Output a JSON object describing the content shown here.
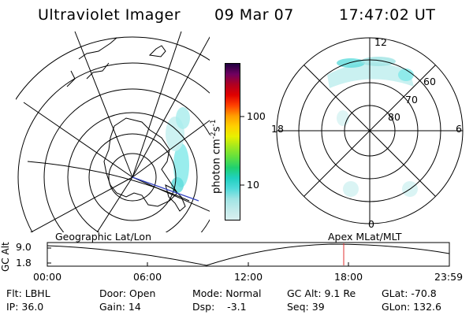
{
  "header": {
    "title": "Ultraviolet Imager",
    "date": "09 Mar 07",
    "time": "17:47:02 UT"
  },
  "colorbar": {
    "label": "photon cm",
    "label_sup1": "-2",
    "label_s": "s",
    "label_sup2": "-1",
    "ticks": [
      "100",
      "10"
    ],
    "colors": [
      "#d9f0f0",
      "#c0eaea",
      "#9fe4e4",
      "#50dada",
      "#20d0c0",
      "#20d070",
      "#60e040",
      "#a0e820",
      "#e8f000",
      "#ffd000",
      "#ff9c00",
      "#ff4000",
      "#e00000",
      "#b00020",
      "#700060",
      "#200040"
    ]
  },
  "polar_plot": {
    "labels": {
      "top": "12",
      "bottom": "0",
      "left": "18",
      "right": "6"
    },
    "lat_labels": [
      "60",
      "70",
      "80"
    ]
  },
  "timeline": {
    "y_axis_label": "GC Alt",
    "y_ticks": [
      "9.0",
      "1.8"
    ],
    "left_title": "Geographic Lat/Lon",
    "right_title": "Apex MLat/MLT",
    "x_ticks": [
      "00:00",
      "06:00",
      "12:00",
      "18:00",
      "23:59"
    ],
    "marker_color": "#e03030"
  },
  "status": {
    "flt": "Flt: LBHL",
    "ip": "IP: 36.0",
    "door": "Door: Open",
    "gain": "Gain: 14",
    "mode": "Mode: Normal",
    "dsp": "Dsp:    -3.1",
    "gc_alt": "GC Alt: 9.1 Re",
    "seq": "Seq: 39",
    "glat": "GLat: -70.8",
    "glon": "GLon: 132.6"
  }
}
